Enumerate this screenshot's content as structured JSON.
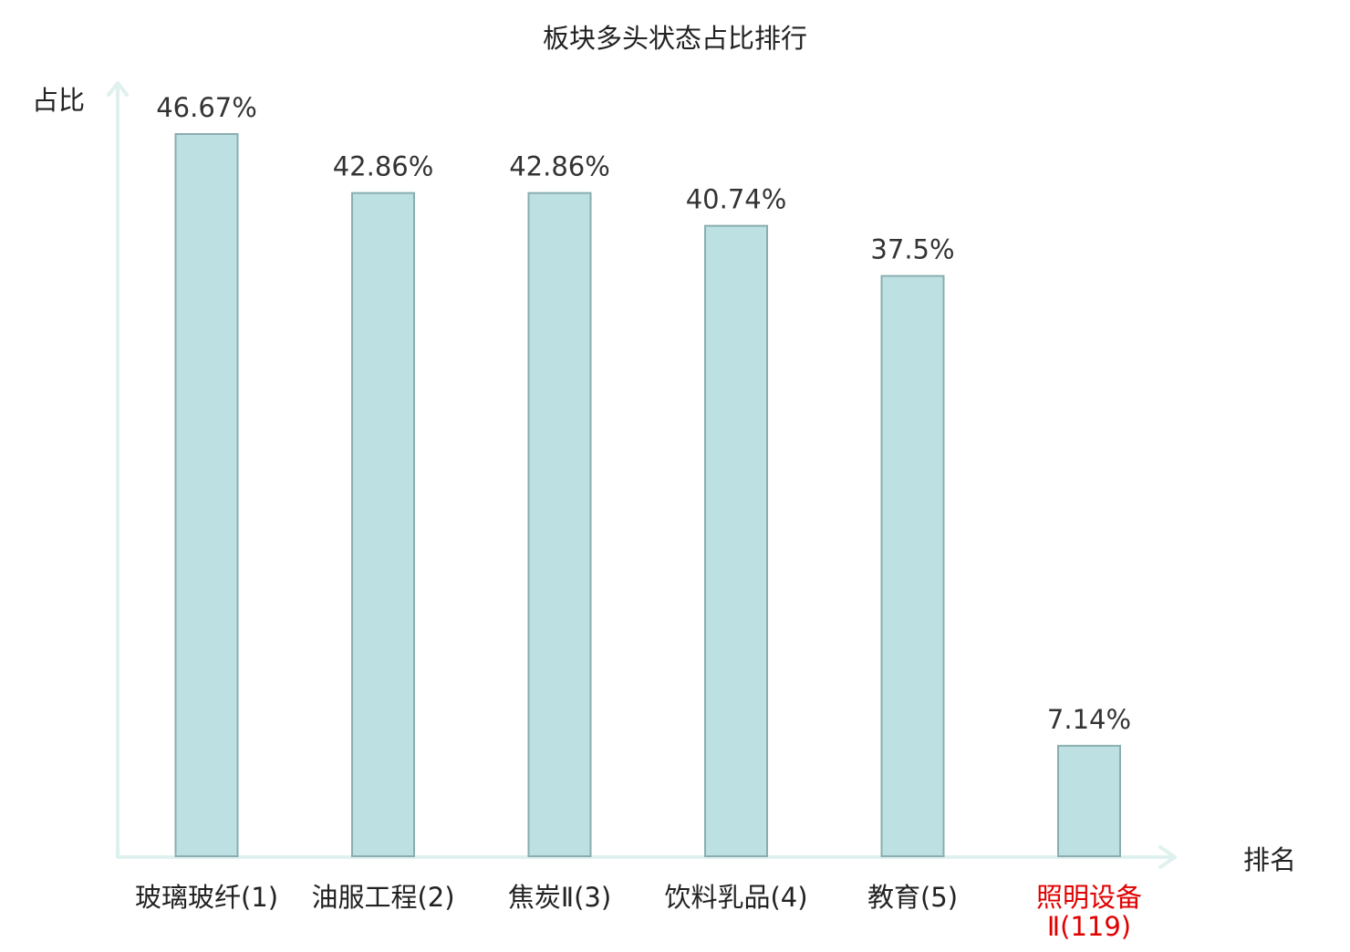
{
  "chart_data": {
    "type": "bar",
    "title": "板块多头状态占比排行",
    "ylabel": "占比",
    "xlabel": "排名",
    "ylim": [
      0,
      50
    ],
    "grid": false,
    "categories": [
      "玻璃玻纤(1)",
      "油服工程(2)",
      "焦炭Ⅱ(3)",
      "饮料乳品(4)",
      "教育(5)",
      "照明设备Ⅱ(119)"
    ],
    "category_lines": [
      [
        "玻璃玻纤(1)"
      ],
      [
        "油服工程(2)"
      ],
      [
        "焦炭Ⅱ(3)"
      ],
      [
        "饮料乳品(4)"
      ],
      [
        "教育(5)"
      ],
      [
        "照明设备",
        "Ⅱ(119)"
      ]
    ],
    "highlighted": [
      false,
      false,
      false,
      false,
      false,
      true
    ],
    "values": [
      46.67,
      42.86,
      42.86,
      40.74,
      37.5,
      7.14
    ],
    "value_labels": [
      "46.67%",
      "42.86%",
      "42.86%",
      "40.74%",
      "37.5%",
      "7.14%"
    ],
    "colors": {
      "bar_fill": "#bde0e3",
      "bar_stroke": "#8aaeaf",
      "axis": "#dff1ee",
      "text": "#333333",
      "label_text": "#222222",
      "highlight_text": "#e00000"
    }
  }
}
